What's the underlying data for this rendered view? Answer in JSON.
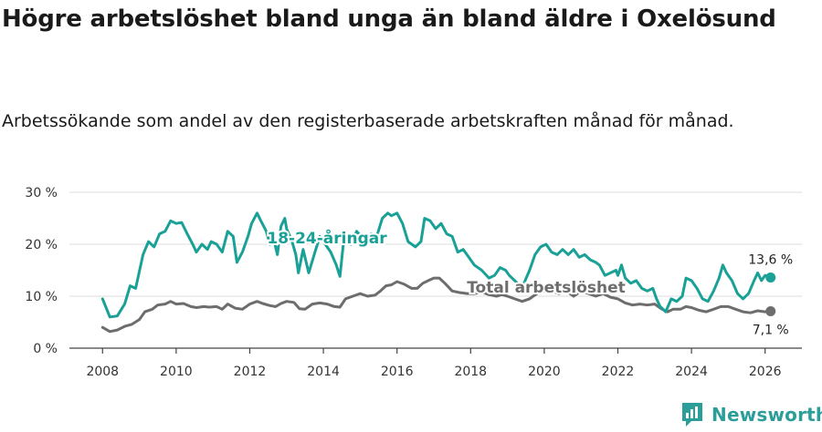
{
  "title": "Högre arbetslöshet bland unga än bland äldre i Oxelösund",
  "subtitle": "Arbetssökande som andel av den registerbaserade arbetskraften månad för månad.",
  "brand": {
    "name": "Newsworthy",
    "icon": "newsworthy-logo-icon",
    "color": "#2c9e9a"
  },
  "chart_data": {
    "type": "line",
    "x_unit": "year",
    "xlim": [
      2007.1,
      2027.0
    ],
    "ylim": [
      0,
      30
    ],
    "yticks": [
      0,
      10,
      20,
      30
    ],
    "ytick_labels": [
      "0 %",
      "10 %",
      "20 %",
      "30 %"
    ],
    "xticks": [
      2008,
      2010,
      2012,
      2014,
      2016,
      2018,
      2020,
      2022,
      2024,
      2026
    ],
    "xtick_labels": [
      "2008",
      "2010",
      "2012",
      "2014",
      "2016",
      "2018",
      "2020",
      "2022",
      "2024",
      "2026"
    ],
    "grid": true,
    "series": [
      {
        "name": "18-24-åringar",
        "color": "#1aa197",
        "label": "18-24-åringar",
        "end_label": "13,6 %",
        "points": [
          [
            2008.0,
            9.5
          ],
          [
            2008.2,
            6.0
          ],
          [
            2008.4,
            6.2
          ],
          [
            2008.6,
            8.5
          ],
          [
            2008.75,
            12.0
          ],
          [
            2008.9,
            11.5
          ],
          [
            2009.1,
            18.0
          ],
          [
            2009.25,
            20.5
          ],
          [
            2009.4,
            19.5
          ],
          [
            2009.55,
            22.0
          ],
          [
            2009.7,
            22.5
          ],
          [
            2009.85,
            24.5
          ],
          [
            2010.0,
            24.0
          ],
          [
            2010.15,
            24.2
          ],
          [
            2010.3,
            22.0
          ],
          [
            2010.45,
            20.0
          ],
          [
            2010.55,
            18.5
          ],
          [
            2010.7,
            20.0
          ],
          [
            2010.85,
            19.0
          ],
          [
            2010.95,
            20.5
          ],
          [
            2011.1,
            20.0
          ],
          [
            2011.25,
            18.5
          ],
          [
            2011.4,
            22.5
          ],
          [
            2011.55,
            21.5
          ],
          [
            2011.65,
            16.5
          ],
          [
            2011.8,
            18.5
          ],
          [
            2011.95,
            21.5
          ],
          [
            2012.05,
            24.0
          ],
          [
            2012.2,
            26.0
          ],
          [
            2012.3,
            24.5
          ],
          [
            2012.45,
            22.5
          ],
          [
            2012.55,
            20.0
          ],
          [
            2012.65,
            21.0
          ],
          [
            2012.75,
            18.0
          ],
          [
            2012.85,
            23.5
          ],
          [
            2012.95,
            25.0
          ],
          [
            2013.0,
            23.0
          ],
          [
            2013.15,
            20.5
          ],
          [
            2013.25,
            18.0
          ],
          [
            2013.32,
            14.5
          ],
          [
            2013.45,
            19.0
          ],
          [
            2013.6,
            14.5
          ],
          [
            2013.75,
            18.0
          ],
          [
            2013.9,
            21.5
          ],
          [
            2014.05,
            20.0
          ],
          [
            2014.2,
            18.5
          ],
          [
            2014.35,
            16.0
          ],
          [
            2014.45,
            13.8
          ],
          [
            2014.55,
            20.5
          ],
          [
            2014.75,
            20.0
          ],
          [
            2014.9,
            22.5
          ],
          [
            2015.1,
            21.0
          ],
          [
            2015.3,
            22.0
          ],
          [
            2015.45,
            21.5
          ],
          [
            2015.6,
            25.0
          ],
          [
            2015.75,
            26.0
          ],
          [
            2015.85,
            25.5
          ],
          [
            2016.0,
            26.0
          ],
          [
            2016.15,
            24.0
          ],
          [
            2016.3,
            20.5
          ],
          [
            2016.5,
            19.5
          ],
          [
            2016.65,
            20.5
          ],
          [
            2016.75,
            25.0
          ],
          [
            2016.9,
            24.5
          ],
          [
            2017.05,
            23.0
          ],
          [
            2017.2,
            24.0
          ],
          [
            2017.35,
            22.0
          ],
          [
            2017.5,
            21.5
          ],
          [
            2017.65,
            18.5
          ],
          [
            2017.8,
            19.0
          ],
          [
            2017.95,
            17.5
          ],
          [
            2018.1,
            16.0
          ],
          [
            2018.3,
            15.0
          ],
          [
            2018.5,
            13.5
          ],
          [
            2018.65,
            14.0
          ],
          [
            2018.8,
            15.5
          ],
          [
            2018.95,
            15.0
          ],
          [
            2019.05,
            14.0
          ],
          [
            2019.2,
            13.0
          ],
          [
            2019.35,
            12.0
          ],
          [
            2019.45,
            12.5
          ],
          [
            2019.6,
            15.0
          ],
          [
            2019.75,
            18.0
          ],
          [
            2019.9,
            19.5
          ],
          [
            2020.05,
            20.0
          ],
          [
            2020.2,
            18.5
          ],
          [
            2020.35,
            18.0
          ],
          [
            2020.5,
            19.0
          ],
          [
            2020.65,
            18.0
          ],
          [
            2020.8,
            19.0
          ],
          [
            2020.95,
            17.5
          ],
          [
            2021.1,
            18.0
          ],
          [
            2021.25,
            17.0
          ],
          [
            2021.4,
            16.5
          ],
          [
            2021.5,
            16.0
          ],
          [
            2021.65,
            14.0
          ],
          [
            2021.8,
            14.5
          ],
          [
            2021.95,
            15.0
          ],
          [
            2022.0,
            14.0
          ],
          [
            2022.1,
            16.0
          ],
          [
            2022.2,
            13.5
          ],
          [
            2022.35,
            12.5
          ],
          [
            2022.5,
            13.0
          ],
          [
            2022.65,
            11.5
          ],
          [
            2022.8,
            11.0
          ],
          [
            2022.95,
            11.5
          ],
          [
            2023.05,
            9.5
          ],
          [
            2023.15,
            8.0
          ],
          [
            2023.3,
            7.0
          ],
          [
            2023.45,
            9.5
          ],
          [
            2023.6,
            9.0
          ],
          [
            2023.75,
            10.0
          ],
          [
            2023.85,
            13.5
          ],
          [
            2024.0,
            13.0
          ],
          [
            2024.15,
            11.5
          ],
          [
            2024.3,
            9.5
          ],
          [
            2024.45,
            9.0
          ],
          [
            2024.6,
            11.0
          ],
          [
            2024.75,
            13.5
          ],
          [
            2024.85,
            16.0
          ],
          [
            2024.95,
            14.5
          ],
          [
            2025.1,
            13.0
          ],
          [
            2025.25,
            10.5
          ],
          [
            2025.4,
            9.5
          ],
          [
            2025.55,
            10.5
          ],
          [
            2025.7,
            13.0
          ],
          [
            2025.8,
            14.5
          ],
          [
            2025.9,
            13.0
          ],
          [
            2026.0,
            14.0
          ],
          [
            2026.15,
            13.6
          ]
        ]
      },
      {
        "name": "Total arbetslöshet",
        "color": "#6d6d6d",
        "label": "Total arbetslöshet",
        "end_label": "7,1 %",
        "points": [
          [
            2008.0,
            4.0
          ],
          [
            2008.2,
            3.2
          ],
          [
            2008.4,
            3.5
          ],
          [
            2008.6,
            4.2
          ],
          [
            2008.8,
            4.6
          ],
          [
            2009.0,
            5.5
          ],
          [
            2009.15,
            7.0
          ],
          [
            2009.35,
            7.5
          ],
          [
            2009.5,
            8.3
          ],
          [
            2009.7,
            8.5
          ],
          [
            2009.85,
            9.0
          ],
          [
            2010.0,
            8.5
          ],
          [
            2010.2,
            8.6
          ],
          [
            2010.4,
            8.0
          ],
          [
            2010.55,
            7.8
          ],
          [
            2010.75,
            8.0
          ],
          [
            2010.9,
            7.9
          ],
          [
            2011.1,
            8.0
          ],
          [
            2011.25,
            7.5
          ],
          [
            2011.4,
            8.5
          ],
          [
            2011.6,
            7.7
          ],
          [
            2011.8,
            7.5
          ],
          [
            2012.0,
            8.5
          ],
          [
            2012.2,
            9.0
          ],
          [
            2012.35,
            8.6
          ],
          [
            2012.55,
            8.2
          ],
          [
            2012.7,
            8.0
          ],
          [
            2012.85,
            8.6
          ],
          [
            2013.0,
            9.0
          ],
          [
            2013.2,
            8.8
          ],
          [
            2013.35,
            7.6
          ],
          [
            2013.5,
            7.5
          ],
          [
            2013.7,
            8.5
          ],
          [
            2013.9,
            8.7
          ],
          [
            2014.1,
            8.5
          ],
          [
            2014.3,
            8.0
          ],
          [
            2014.45,
            7.9
          ],
          [
            2014.6,
            9.5
          ],
          [
            2014.8,
            10.0
          ],
          [
            2015.0,
            10.5
          ],
          [
            2015.2,
            10.0
          ],
          [
            2015.4,
            10.2
          ],
          [
            2015.55,
            11.0
          ],
          [
            2015.7,
            12.0
          ],
          [
            2015.85,
            12.2
          ],
          [
            2016.0,
            12.8
          ],
          [
            2016.2,
            12.3
          ],
          [
            2016.4,
            11.5
          ],
          [
            2016.55,
            11.5
          ],
          [
            2016.7,
            12.5
          ],
          [
            2016.85,
            13.0
          ],
          [
            2017.0,
            13.5
          ],
          [
            2017.15,
            13.5
          ],
          [
            2017.3,
            12.5
          ],
          [
            2017.5,
            11.0
          ],
          [
            2017.7,
            10.7
          ],
          [
            2017.9,
            10.5
          ],
          [
            2018.1,
            10.5
          ],
          [
            2018.3,
            10.8
          ],
          [
            2018.5,
            10.3
          ],
          [
            2018.7,
            10.0
          ],
          [
            2018.85,
            10.3
          ],
          [
            2019.0,
            10.0
          ],
          [
            2019.2,
            9.5
          ],
          [
            2019.4,
            9.0
          ],
          [
            2019.6,
            9.5
          ],
          [
            2019.8,
            10.5
          ],
          [
            2020.0,
            11.0
          ],
          [
            2020.2,
            11.0
          ],
          [
            2020.4,
            10.5
          ],
          [
            2020.6,
            11.0
          ],
          [
            2020.8,
            10.0
          ],
          [
            2021.0,
            11.0
          ],
          [
            2021.2,
            10.5
          ],
          [
            2021.4,
            10.0
          ],
          [
            2021.6,
            10.5
          ],
          [
            2021.8,
            9.8
          ],
          [
            2022.0,
            9.5
          ],
          [
            2022.2,
            8.7
          ],
          [
            2022.4,
            8.3
          ],
          [
            2022.6,
            8.5
          ],
          [
            2022.8,
            8.3
          ],
          [
            2023.0,
            8.5
          ],
          [
            2023.2,
            7.5
          ],
          [
            2023.35,
            7.0
          ],
          [
            2023.5,
            7.5
          ],
          [
            2023.7,
            7.5
          ],
          [
            2023.85,
            8.0
          ],
          [
            2024.0,
            7.8
          ],
          [
            2024.2,
            7.3
          ],
          [
            2024.4,
            7.0
          ],
          [
            2024.6,
            7.5
          ],
          [
            2024.8,
            8.0
          ],
          [
            2025.0,
            8.0
          ],
          [
            2025.2,
            7.5
          ],
          [
            2025.4,
            7.0
          ],
          [
            2025.6,
            6.8
          ],
          [
            2025.8,
            7.2
          ],
          [
            2026.0,
            7.0
          ],
          [
            2026.15,
            7.1
          ]
        ]
      }
    ]
  }
}
